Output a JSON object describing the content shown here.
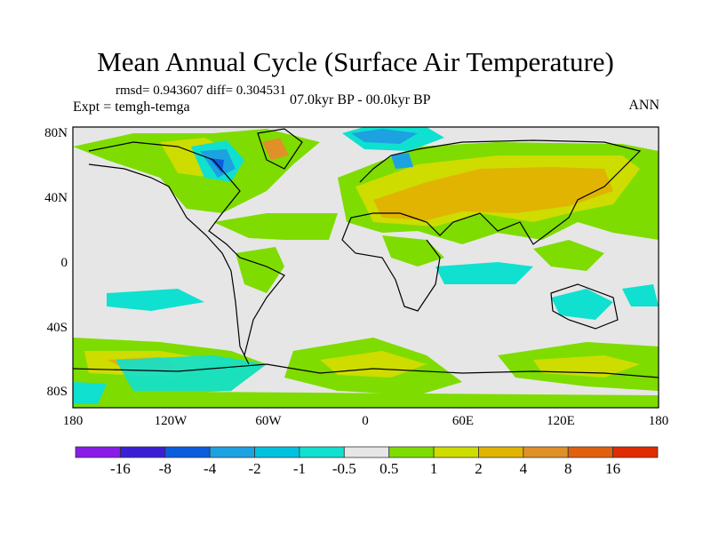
{
  "title": "Mean Annual Cycle (Surface Air Temperature)",
  "stats": "rmsd= 0.943607 diff= 0.304531",
  "experiment": "Expt = temgh-temga",
  "period": "07.0kyr BP - 00.0kyr BP",
  "season": "ANN",
  "lat_labels": [
    "80N",
    "40N",
    "0",
    "40S",
    "80S"
  ],
  "lon_labels": [
    "180",
    "120W",
    "60W",
    "0",
    "60E",
    "120E",
    "180"
  ],
  "colorbar": {
    "labels": [
      "-16",
      "-8",
      "-4",
      "-2",
      "-1",
      "-0.5",
      "0.5",
      "1",
      "2",
      "4",
      "8",
      "16"
    ],
    "colors": [
      "#8a1ce8",
      "#3a1ed6",
      "#0a5ede",
      "#1ca2e0",
      "#00c2e0",
      "#10e0d0",
      "#e6e6e6",
      "#7edc00",
      "#cedc00",
      "#e0b400",
      "#e09028",
      "#e06010",
      "#e02c00"
    ]
  }
}
